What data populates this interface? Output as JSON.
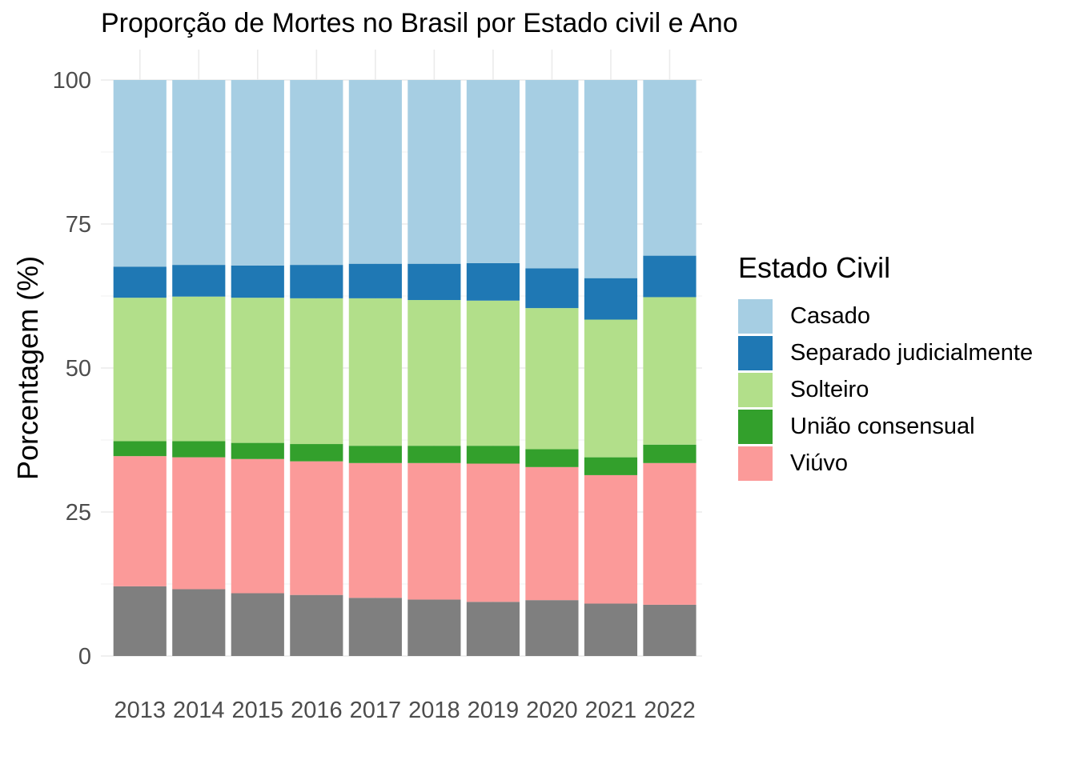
{
  "chart_data": {
    "type": "bar",
    "stacked": true,
    "title": "Proporção de Mortes no Brasil por Estado civil e Ano",
    "xlabel": "",
    "ylabel": "Porcentagem (%)",
    "ylim": [
      0,
      100
    ],
    "yticks": [
      0,
      25,
      50,
      75,
      100
    ],
    "grid": true,
    "legend_position": "right",
    "legend_title": "Estado Civil",
    "categories": [
      "2013",
      "2014",
      "2015",
      "2016",
      "2017",
      "2018",
      "2019",
      "2020",
      "2021",
      "2022"
    ],
    "series": [
      {
        "name": "",
        "color": "#7f7f7f",
        "values": [
          12.1,
          11.6,
          10.9,
          10.6,
          10.1,
          9.8,
          9.4,
          9.7,
          9.1,
          8.9
        ]
      },
      {
        "name": "Viúvo",
        "color": "#fb9a99",
        "values": [
          22.6,
          22.9,
          23.3,
          23.2,
          23.4,
          23.7,
          24.0,
          23.1,
          22.3,
          24.6
        ]
      },
      {
        "name": "União consensual",
        "color": "#33a02c",
        "values": [
          2.6,
          2.8,
          2.8,
          3.0,
          3.0,
          3.0,
          3.1,
          3.1,
          3.1,
          3.2
        ]
      },
      {
        "name": "Solteiro",
        "color": "#b2df8a",
        "values": [
          24.9,
          25.1,
          25.2,
          25.3,
          25.6,
          25.3,
          25.2,
          24.5,
          23.9,
          25.6
        ]
      },
      {
        "name": "Separado judicialmente",
        "color": "#1f78b4",
        "values": [
          5.4,
          5.5,
          5.6,
          5.8,
          6.0,
          6.3,
          6.5,
          6.9,
          7.2,
          7.2
        ]
      },
      {
        "name": "Casado",
        "color": "#a6cee3",
        "values": [
          32.4,
          32.1,
          32.2,
          32.1,
          31.9,
          31.9,
          31.8,
          32.7,
          34.4,
          30.5
        ]
      }
    ],
    "legend": [
      {
        "label": "Casado",
        "color": "#a6cee3"
      },
      {
        "label": "Separado judicialmente",
        "color": "#1f78b4"
      },
      {
        "label": "Solteiro",
        "color": "#b2df8a"
      },
      {
        "label": "União consensual",
        "color": "#33a02c"
      },
      {
        "label": "Viúvo",
        "color": "#fb9a99"
      }
    ]
  }
}
